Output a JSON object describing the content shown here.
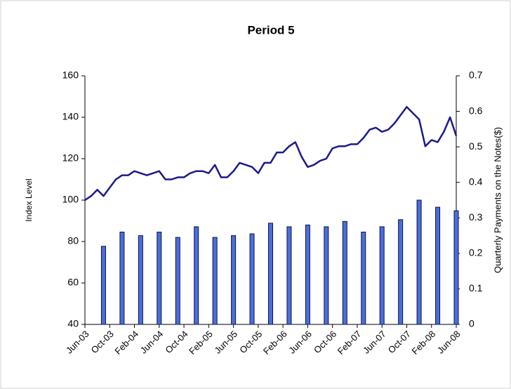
{
  "chart_data": {
    "type": "combo",
    "title": "Period 5",
    "y_label": "Index Level",
    "y2_label": "Quarterly Payments on the Notes($)",
    "xticks": [
      "Jun-03",
      "Oct-03",
      "Feb-04",
      "Jun-04",
      "Oct-04",
      "Feb-05",
      "Jun-05",
      "Oct-05",
      "Feb-06",
      "Jun-06",
      "Oct-06",
      "Feb-07",
      "Jun-07",
      "Oct-07",
      "Feb-08",
      "Jun-08"
    ],
    "ylim": [
      40,
      160
    ],
    "yticks": [
      40,
      60,
      80,
      100,
      120,
      140,
      160
    ],
    "y2lim": [
      0,
      0.7
    ],
    "y2ticks": [
      0,
      0.1,
      0.2,
      0.3,
      0.4,
      0.5,
      0.6,
      0.7
    ],
    "series": [
      {
        "type": "bar",
        "axis": "y2",
        "color": "#4a6fd9",
        "x": [
          "Sep-03",
          "Dec-03",
          "Mar-04",
          "Jun-04",
          "Sep-04",
          "Dec-04",
          "Mar-05",
          "Jun-05",
          "Sep-05",
          "Dec-05",
          "Mar-06",
          "Jun-06",
          "Sep-06",
          "Dec-06",
          "Mar-07",
          "Jun-07",
          "Sep-07",
          "Dec-07",
          "Mar-08",
          "Jun-08"
        ],
        "values": [
          0.22,
          0.26,
          0.25,
          0.26,
          0.245,
          0.275,
          0.245,
          0.25,
          0.255,
          0.285,
          0.275,
          0.28,
          0.275,
          0.29,
          0.26,
          0.275,
          0.295,
          0.35,
          0.33,
          0.32
        ]
      },
      {
        "type": "line",
        "color": "#1a1a8c",
        "x": [
          "Jun-03",
          "Jul-03",
          "Aug-03",
          "Sep-03",
          "Oct-03",
          "Nov-03",
          "Dec-03",
          "Jan-04",
          "Feb-04",
          "Mar-04",
          "Apr-04",
          "May-04",
          "Jun-04",
          "Jul-04",
          "Aug-04",
          "Sep-04",
          "Oct-04",
          "Nov-04",
          "Dec-04",
          "Jan-05",
          "Feb-05",
          "Mar-05",
          "Apr-05",
          "May-05",
          "Jun-05",
          "Jul-05",
          "Aug-05",
          "Sep-05",
          "Oct-05",
          "Nov-05",
          "Dec-05",
          "Jan-06",
          "Feb-06",
          "Mar-06",
          "Apr-06",
          "May-06",
          "Jun-06",
          "Jul-06",
          "Aug-06",
          "Sep-06",
          "Oct-06",
          "Nov-06",
          "Dec-06",
          "Jan-07",
          "Feb-07",
          "Mar-07",
          "Apr-07",
          "May-07",
          "Jun-07",
          "Jul-07",
          "Aug-07",
          "Sep-07",
          "Oct-07",
          "Nov-07",
          "Dec-07",
          "Jan-08",
          "Feb-08",
          "Mar-08",
          "Apr-08",
          "May-08",
          "Jun-08"
        ],
        "values": [
          100,
          102,
          105,
          102,
          106,
          110,
          112,
          112,
          114,
          113,
          112,
          113,
          114,
          110,
          110,
          111,
          111,
          113,
          114,
          114,
          113,
          117,
          111,
          111,
          114,
          118,
          117,
          116,
          113,
          118,
          118,
          123,
          123,
          126,
          128,
          121,
          116,
          117,
          119,
          120,
          125,
          126,
          126,
          127,
          127,
          130,
          134,
          135,
          133,
          134,
          137,
          141,
          145,
          142,
          139,
          126,
          129,
          128,
          133,
          140,
          131
        ]
      }
    ]
  }
}
